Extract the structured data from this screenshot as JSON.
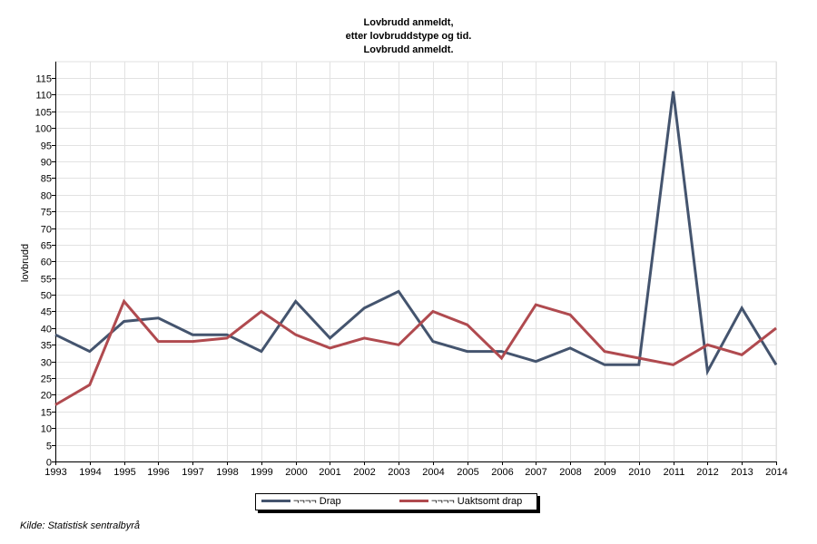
{
  "chart_data": {
    "type": "line",
    "title": [
      "Lovbrudd anmeldt,",
      "etter lovbruddstype og tid.",
      "Lovbrudd anmeldt."
    ],
    "ylabel": "lovbrudd",
    "xlabel": "",
    "ylim": [
      0,
      115
    ],
    "ytick_step": 5,
    "grid": true,
    "legend_position": "bottom",
    "x": [
      "1993",
      "1994",
      "1995",
      "1996",
      "1997",
      "1998",
      "1999",
      "2000",
      "2001",
      "2002",
      "2003",
      "2004",
      "2005",
      "2006",
      "2007",
      "2008",
      "2009",
      "2010",
      "2011",
      "2012",
      "2013",
      "2014"
    ],
    "series": [
      {
        "name": "¬¬¬¬ Drap",
        "color": "#44546e",
        "values": [
          38,
          33,
          42,
          43,
          38,
          38,
          33,
          48,
          37,
          46,
          51,
          36,
          33,
          33,
          30,
          34,
          29,
          29,
          111,
          27,
          46,
          29
        ]
      },
      {
        "name": "¬¬¬¬ Uaktsomt drap",
        "color": "#b04a4f",
        "values": [
          17,
          23,
          48,
          36,
          36,
          37,
          45,
          38,
          34,
          37,
          35,
          45,
          41,
          31,
          47,
          44,
          33,
          31,
          29,
          35,
          32,
          40
        ]
      }
    ]
  },
  "source": "Kilde: Statistisk sentralbyrå"
}
